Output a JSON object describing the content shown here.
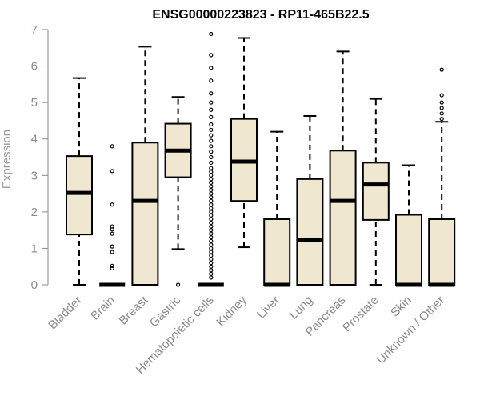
{
  "chart_data": {
    "type": "boxplot",
    "title": "ENSG00000223823 - RP11-465B22.5",
    "ylabel": "Expression",
    "xlabel": "",
    "ylim": [
      0,
      7
    ],
    "yticks": [
      0,
      1,
      2,
      3,
      4,
      5,
      6,
      7
    ],
    "grid": false,
    "legend": "none",
    "box_fill": "#efe7cf",
    "box_stroke": "#000000",
    "axis_color": "#8a8a8a",
    "categories": [
      "Bladder",
      "Brain",
      "Breast",
      "Gastric",
      "Hematopoietic cells",
      "Kidney",
      "Liver",
      "Lung",
      "Pancreas",
      "Prostate",
      "Skin",
      "Unknown / Other"
    ],
    "boxes": [
      {
        "whisker_low": 0,
        "q1": 1.38,
        "median": 2.52,
        "q3": 3.53,
        "whisker_high": 5.67,
        "outliers": []
      },
      {
        "whisker_low": 0,
        "q1": 0,
        "median": 0,
        "q3": 0,
        "whisker_high": 0,
        "outliers": [
          0.45,
          0.52,
          0.9,
          1.05,
          1.4,
          1.52,
          1.6,
          2.2,
          3.12,
          3.8
        ]
      },
      {
        "whisker_low": 0,
        "q1": 0,
        "median": 2.3,
        "q3": 3.9,
        "whisker_high": 6.53,
        "outliers": []
      },
      {
        "whisker_low": 0.98,
        "q1": 2.95,
        "median": 3.68,
        "q3": 4.42,
        "whisker_high": 5.15,
        "outliers": [
          0
        ]
      },
      {
        "whisker_low": 0,
        "q1": 0,
        "median": 0,
        "q3": 0,
        "whisker_high": 0,
        "outliers": [
          0.2,
          0.3,
          0.4,
          0.5,
          0.6,
          0.7,
          0.8,
          0.9,
          1.0,
          1.1,
          1.2,
          1.3,
          1.4,
          1.5,
          1.6,
          1.7,
          1.8,
          1.9,
          2.0,
          2.1,
          2.2,
          2.3,
          2.4,
          2.5,
          2.6,
          2.7,
          2.8,
          2.9,
          3.0,
          3.1,
          3.2,
          3.35,
          3.5,
          3.65,
          3.8,
          3.95,
          4.1,
          4.25,
          4.4,
          4.6,
          4.8,
          5.0,
          5.25,
          5.6,
          5.95,
          6.3,
          6.88
        ]
      },
      {
        "whisker_low": 1.03,
        "q1": 2.3,
        "median": 3.38,
        "q3": 4.55,
        "whisker_high": 6.77,
        "outliers": []
      },
      {
        "whisker_low": 0,
        "q1": 0,
        "median": 0,
        "q3": 1.8,
        "whisker_high": 4.2,
        "outliers": []
      },
      {
        "whisker_low": 0,
        "q1": 0,
        "median": 1.23,
        "q3": 2.9,
        "whisker_high": 4.63,
        "outliers": []
      },
      {
        "whisker_low": 0,
        "q1": 0,
        "median": 2.3,
        "q3": 3.68,
        "whisker_high": 6.4,
        "outliers": []
      },
      {
        "whisker_low": 0,
        "q1": 1.78,
        "median": 2.75,
        "q3": 3.35,
        "whisker_high": 5.1,
        "outliers": []
      },
      {
        "whisker_low": 0,
        "q1": 0,
        "median": 0,
        "q3": 1.92,
        "whisker_high": 3.28,
        "outliers": []
      },
      {
        "whisker_low": 0,
        "q1": 0,
        "median": 0,
        "q3": 1.8,
        "whisker_high": 4.47,
        "outliers": [
          4.55,
          4.7,
          4.85,
          5.0,
          5.2,
          5.9
        ]
      }
    ]
  }
}
